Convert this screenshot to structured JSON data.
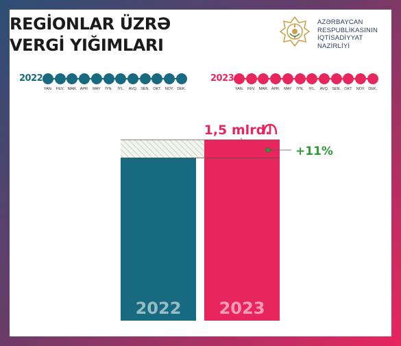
{
  "header": {
    "title_line1": "REGİONLAR ÜZRƏ",
    "title_line2": "VERGİ YIĞIMLARI"
  },
  "ministry": {
    "line1": "AZƏRBAYCAN",
    "line2": "RESPUBLİKASININ",
    "line3": "İQTİSADİYYAT",
    "line4": "NAZİRLİYİ",
    "emblem_icon": "ministry-emblem-icon"
  },
  "timelines": [
    {
      "year": "2022",
      "color": "#176a7f"
    },
    {
      "year": "2023",
      "color": "#e8265e"
    }
  ],
  "months": [
    "YAN.",
    "FEV.",
    "MAR.",
    "APR.",
    "MAY",
    "İYN.",
    "İYL.",
    "AVQ.",
    "SEN.",
    "OKT.",
    "NOY.",
    "DEK."
  ],
  "colors": {
    "teal": "#176a7f",
    "pink": "#e8265e",
    "green": "#2e9b3a"
  },
  "chart_data": {
    "type": "bar",
    "categories": [
      "2022",
      "2023"
    ],
    "values": [
      1.35,
      1.5
    ],
    "title": "",
    "xlabel": "",
    "ylabel": "",
    "ylim": [
      0,
      1.5
    ],
    "annotations": {
      "value_label": "1,5 mlrd.",
      "currency_icon": "manat-icon",
      "growth_label": "+11%"
    }
  }
}
